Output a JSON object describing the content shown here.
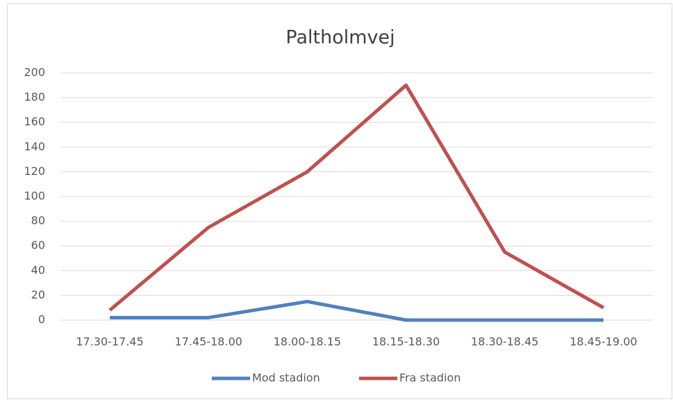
{
  "chart_data": {
    "type": "line",
    "title": "Paltholmvej",
    "categories": [
      "17.30-17.45",
      "17.45-18.00",
      "18.00-18.15",
      "18.15-18.30",
      "18.30-18.45",
      "18.45-19.00"
    ],
    "series": [
      {
        "name": "Mod stadion",
        "color": "#4f81bd",
        "values": [
          2,
          2,
          15,
          0,
          0,
          0
        ]
      },
      {
        "name": "Fra stadion",
        "color": "#c0504d",
        "values": [
          8,
          75,
          120,
          190,
          55,
          10
        ]
      }
    ],
    "ylim": [
      0,
      200
    ],
    "yticks": [
      0,
      20,
      40,
      60,
      80,
      100,
      120,
      140,
      160,
      180,
      200
    ],
    "grid": true,
    "legend": "bottom"
  }
}
